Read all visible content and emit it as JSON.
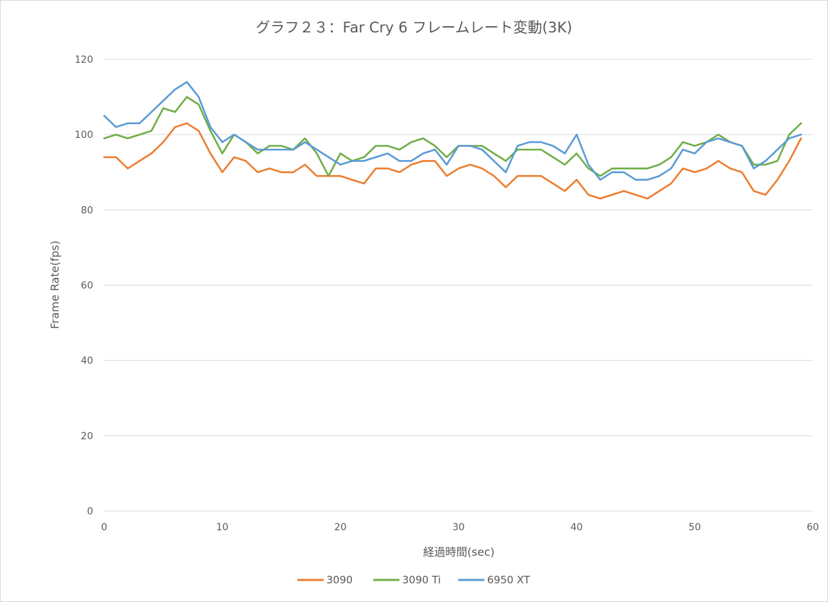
{
  "chart_data": {
    "type": "line",
    "title": "グラフ２３：Far Cry 6 フレームレート変動(3K)",
    "xlabel": "経過時間(sec)",
    "ylabel": "Frame Rate(fps)",
    "xlim": [
      0,
      60
    ],
    "ylim": [
      0,
      120
    ],
    "x_ticks": [
      "0",
      "10",
      "20",
      "30",
      "40",
      "50",
      "60"
    ],
    "y_ticks": [
      "0",
      "20",
      "40",
      "60",
      "80",
      "100",
      "120"
    ],
    "grid": true,
    "legend_position": "bottom",
    "x": [
      0,
      1,
      2,
      3,
      4,
      5,
      6,
      7,
      8,
      9,
      10,
      11,
      12,
      13,
      14,
      15,
      16,
      17,
      18,
      19,
      20,
      21,
      22,
      23,
      24,
      25,
      26,
      27,
      28,
      29,
      30,
      31,
      32,
      33,
      34,
      35,
      36,
      37,
      38,
      39,
      40,
      41,
      42,
      43,
      44,
      45,
      46,
      47,
      48,
      49,
      50,
      51,
      52,
      53,
      54,
      55,
      56,
      57,
      58,
      59
    ],
    "series": [
      {
        "name": "3090",
        "color": "#ed7d31",
        "values": [
          94,
          94,
          91,
          93,
          95,
          98,
          102,
          103,
          101,
          95,
          90,
          94,
          93,
          90,
          91,
          90,
          90,
          92,
          89,
          89,
          89,
          88,
          87,
          91,
          91,
          90,
          92,
          93,
          93,
          89,
          91,
          92,
          91,
          89,
          86,
          89,
          89,
          89,
          87,
          85,
          88,
          84,
          83,
          84,
          85,
          84,
          83,
          85,
          87,
          91,
          90,
          91,
          93,
          91,
          90,
          85,
          84,
          88,
          93,
          99
        ]
      },
      {
        "name": "3090 Ti",
        "color": "#70ad47",
        "values": [
          99,
          100,
          99,
          100,
          101,
          107,
          106,
          110,
          108,
          101,
          95,
          100,
          98,
          95,
          97,
          97,
          96,
          99,
          95,
          89,
          95,
          93,
          94,
          97,
          97,
          96,
          98,
          99,
          97,
          94,
          97,
          97,
          97,
          95,
          93,
          96,
          96,
          96,
          94,
          92,
          95,
          91,
          89,
          91,
          91,
          91,
          91,
          92,
          94,
          98,
          97,
          98,
          100,
          98,
          97,
          92,
          92,
          93,
          100,
          103
        ]
      },
      {
        "name": "6950 XT",
        "color": "#5b9bd5",
        "values": [
          105,
          102,
          103,
          103,
          106,
          109,
          112,
          114,
          110,
          102,
          98,
          100,
          98,
          96,
          96,
          96,
          96,
          98,
          96,
          94,
          92,
          93,
          93,
          94,
          95,
          93,
          93,
          95,
          96,
          92,
          97,
          97,
          96,
          93,
          90,
          97,
          98,
          98,
          97,
          95,
          100,
          92,
          88,
          90,
          90,
          88,
          88,
          89,
          91,
          96,
          95,
          98,
          99,
          98,
          97,
          91,
          93,
          96,
          99,
          100
        ]
      }
    ]
  }
}
